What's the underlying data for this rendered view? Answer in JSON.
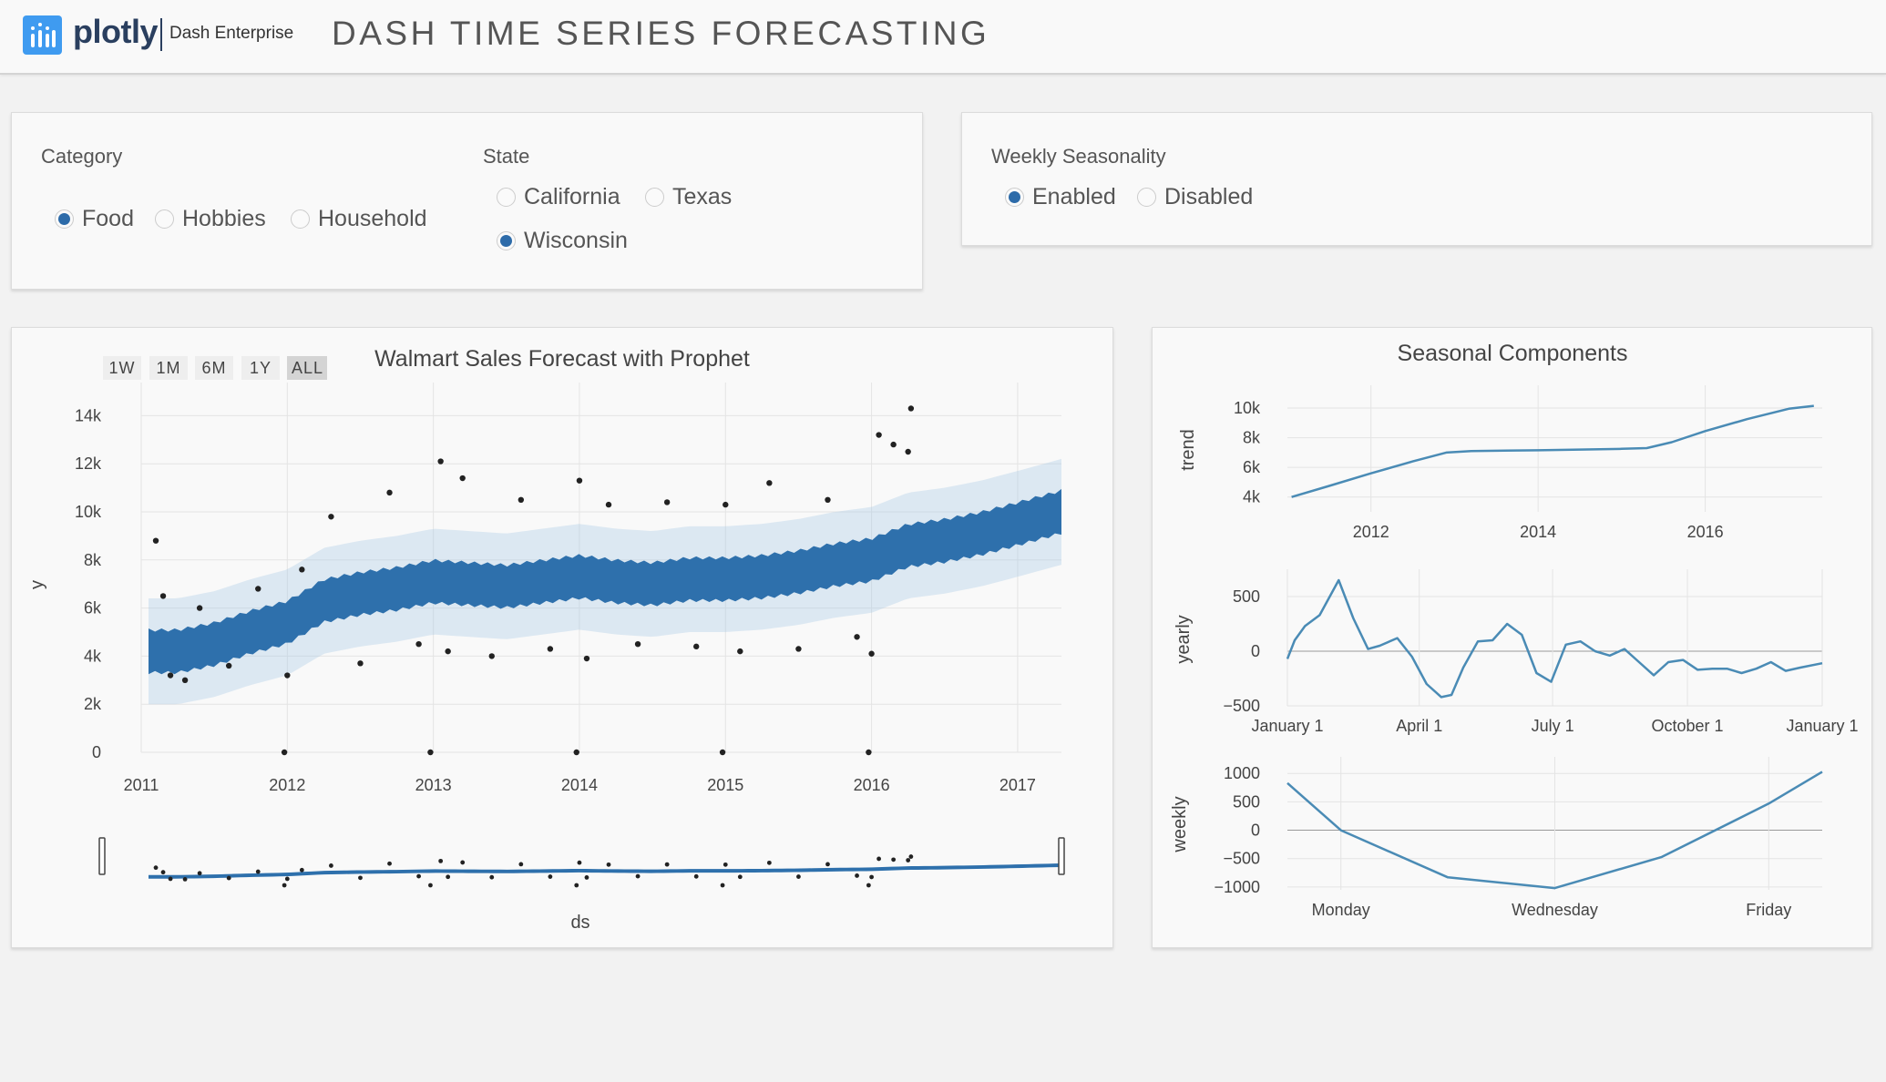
{
  "header": {
    "brand": "plotly",
    "product": "Dash Enterprise",
    "title": "DASH TIME SERIES FORECASTING"
  },
  "controls": {
    "category": {
      "label": "Category",
      "options": [
        "Food",
        "Hobbies",
        "Household"
      ],
      "selected": "Food"
    },
    "state": {
      "label": "State",
      "options": [
        "California",
        "Texas",
        "Wisconsin"
      ],
      "selected": "Wisconsin"
    },
    "weekly": {
      "label": "Weekly Seasonality",
      "options": [
        "Enabled",
        "Disabled"
      ],
      "selected": "Enabled"
    }
  },
  "forecast_chart": {
    "range_buttons": [
      "1W",
      "1M",
      "6M",
      "1Y",
      "ALL"
    ],
    "active_button": "ALL"
  },
  "colors": {
    "accent": "#2d6ba9",
    "forecast": "#2e70ac",
    "uncertainty": "#a6c8e4",
    "points": "#222222",
    "component_line": "#4a8bb5"
  },
  "chart_data": [
    {
      "type": "scatter",
      "title": "Walmart Sales Forecast with Prophet",
      "xlabel": "ds",
      "ylabel": "y",
      "x_ticks": [
        "2011",
        "2012",
        "2013",
        "2014",
        "2015",
        "2016",
        "2017"
      ],
      "y_ticks": [
        "0",
        "2k",
        "4k",
        "6k",
        "8k",
        "10k",
        "12k",
        "14k"
      ],
      "xlim": [
        2011.0,
        2017.3
      ],
      "ylim": [
        0,
        15000
      ],
      "rangeslider": true,
      "series": [
        {
          "x": [
            2011.05,
            2011.25,
            2011.5,
            2011.75,
            2012.0,
            2012.25,
            2012.5,
            2012.75,
            2013.0,
            2013.25,
            2013.5,
            2013.75,
            2014.0,
            2014.25,
            2014.5,
            2014.75,
            2015.0,
            2015.25,
            2015.5,
            2015.75,
            2016.0,
            2016.25,
            2016.5,
            2016.75,
            2017.0,
            2017.3
          ],
          "y": [
            4200,
            4200,
            4500,
            5000,
            5400,
            6300,
            6600,
            6800,
            7100,
            7000,
            6900,
            7100,
            7300,
            7100,
            7000,
            7200,
            7200,
            7300,
            7500,
            7800,
            8000,
            8600,
            8800,
            9100,
            9500,
            10000
          ]
        },
        {
          "x": [
            2011.1,
            2011.15,
            2011.2,
            2011.3,
            2011.4,
            2011.6,
            2011.8,
            2012.0,
            2012.1,
            2012.3,
            2012.5,
            2012.7,
            2012.9,
            2013.05,
            2013.1,
            2013.2,
            2013.4,
            2013.6,
            2013.8,
            2014.0,
            2014.05,
            2014.2,
            2014.4,
            2014.6,
            2014.8,
            2015.0,
            2015.1,
            2015.3,
            2015.5,
            2015.7,
            2015.9,
            2016.0,
            2016.05,
            2016.15,
            2016.25,
            2016.27,
            2011.98,
            2012.98,
            2013.98,
            2014.98,
            2015.98
          ],
          "y": [
            8800,
            6500,
            3200,
            3000,
            6000,
            3600,
            6800,
            3200,
            7600,
            9800,
            3700,
            10800,
            4500,
            12100,
            4200,
            11400,
            4000,
            10500,
            4300,
            11300,
            3900,
            10300,
            4500,
            10400,
            4400,
            10300,
            4200,
            11200,
            4300,
            10500,
            4800,
            4100,
            13200,
            12800,
            12500,
            14300,
            0,
            0,
            0,
            0,
            0
          ]
        }
      ]
    },
    {
      "type": "line",
      "title": "Seasonal Components",
      "ylabel": "trend",
      "x_ticks": [
        "2012",
        "2014",
        "2016"
      ],
      "y_ticks": [
        "4k",
        "6k",
        "8k",
        "10k"
      ],
      "series": [
        {
          "x": [
            2011.05,
            2011.5,
            2012.0,
            2012.5,
            2012.9,
            2013.2,
            2014.0,
            2014.5,
            2015.0,
            2015.3,
            2015.6,
            2016.0,
            2016.5,
            2017.0,
            2017.3
          ],
          "y": [
            4000,
            4750,
            5600,
            6400,
            7000,
            7100,
            7150,
            7200,
            7250,
            7300,
            7700,
            8450,
            9250,
            9950,
            10150
          ]
        }
      ]
    },
    {
      "type": "line",
      "ylabel": "yearly",
      "x_ticks": [
        "January 1",
        "April 1",
        "July 1",
        "October 1",
        "January 1"
      ],
      "y_ticks": [
        "−500",
        "0",
        "500"
      ],
      "series": [
        {
          "x": [
            0,
            5,
            12,
            22,
            35,
            45,
            55,
            63,
            75,
            85,
            95,
            105,
            112,
            120,
            130,
            140,
            150,
            160,
            170,
            180,
            190,
            200,
            210,
            220,
            230,
            240,
            250,
            260,
            270,
            280,
            290,
            300,
            310,
            320,
            330,
            340,
            350,
            365
          ],
          "y": [
            -70,
            100,
            230,
            330,
            650,
            300,
            20,
            50,
            120,
            -50,
            -300,
            -420,
            -400,
            -150,
            90,
            100,
            250,
            150,
            -200,
            -280,
            60,
            90,
            0,
            -40,
            20,
            -100,
            -220,
            -100,
            -80,
            -170,
            -160,
            -160,
            -200,
            -160,
            -100,
            -180,
            -150,
            -110
          ]
        }
      ]
    },
    {
      "type": "line",
      "ylabel": "weekly",
      "x_ticks": [
        "Monday",
        "Wednesday",
        "Friday"
      ],
      "y_ticks": [
        "−1000",
        "−500",
        "0",
        "500",
        "1000"
      ],
      "series": [
        {
          "x": [
            0.5,
            1,
            2,
            3,
            4,
            5,
            5.5
          ],
          "y": [
            830,
            0,
            -830,
            -1020,
            -470,
            470,
            1030
          ]
        }
      ]
    }
  ]
}
